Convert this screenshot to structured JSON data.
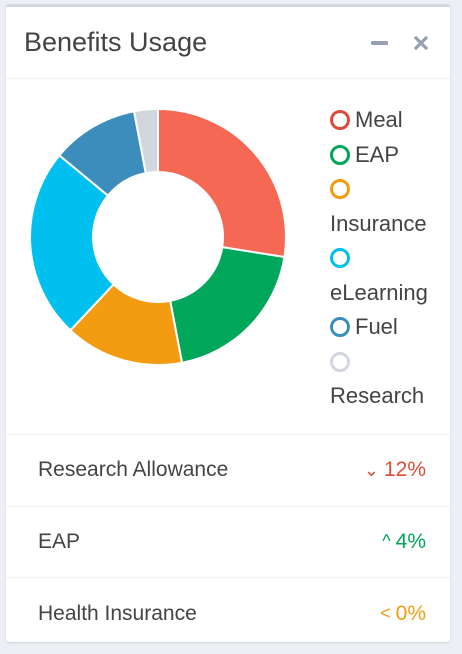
{
  "card": {
    "title": "Benefits Usage",
    "minimize_icon": "minus-icon",
    "close_icon": "times-icon"
  },
  "chart_data": {
    "type": "pie",
    "categories": [
      "Meal",
      "EAP",
      "Insurance",
      "eLearning",
      "Fuel",
      "Research"
    ],
    "values": [
      27.5,
      19.5,
      15,
      24,
      11,
      3
    ],
    "colors": [
      "#f56954",
      "#00a65a",
      "#f39c12",
      "#00c0ef",
      "#3c8dbc",
      "#d2d6de"
    ],
    "legend": "right"
  },
  "legend": [
    {
      "label": "Meal",
      "color": "#dd4b39"
    },
    {
      "label": "EAP",
      "color": "#00a65a"
    },
    {
      "label": "Insurance",
      "color": "#f39c12"
    },
    {
      "label": "eLearning",
      "color": "#00c0ef"
    },
    {
      "label": "Fuel",
      "color": "#3c8dbc"
    },
    {
      "label": "Research",
      "color": "#d2d6de"
    }
  ],
  "stats": [
    {
      "label": "Research Allowance",
      "value": "12%",
      "direction": "down",
      "icon": "chevron-down-icon",
      "color": "#dd4b39",
      "arrow": "⌄"
    },
    {
      "label": "EAP",
      "value": "4%",
      "direction": "up",
      "icon": "chevron-up-icon",
      "color": "#00a65a",
      "arrow": "^"
    },
    {
      "label": "Health Insurance",
      "value": "0%",
      "direction": "left",
      "icon": "chevron-left-icon",
      "color": "#f39c12",
      "arrow": "<"
    }
  ]
}
